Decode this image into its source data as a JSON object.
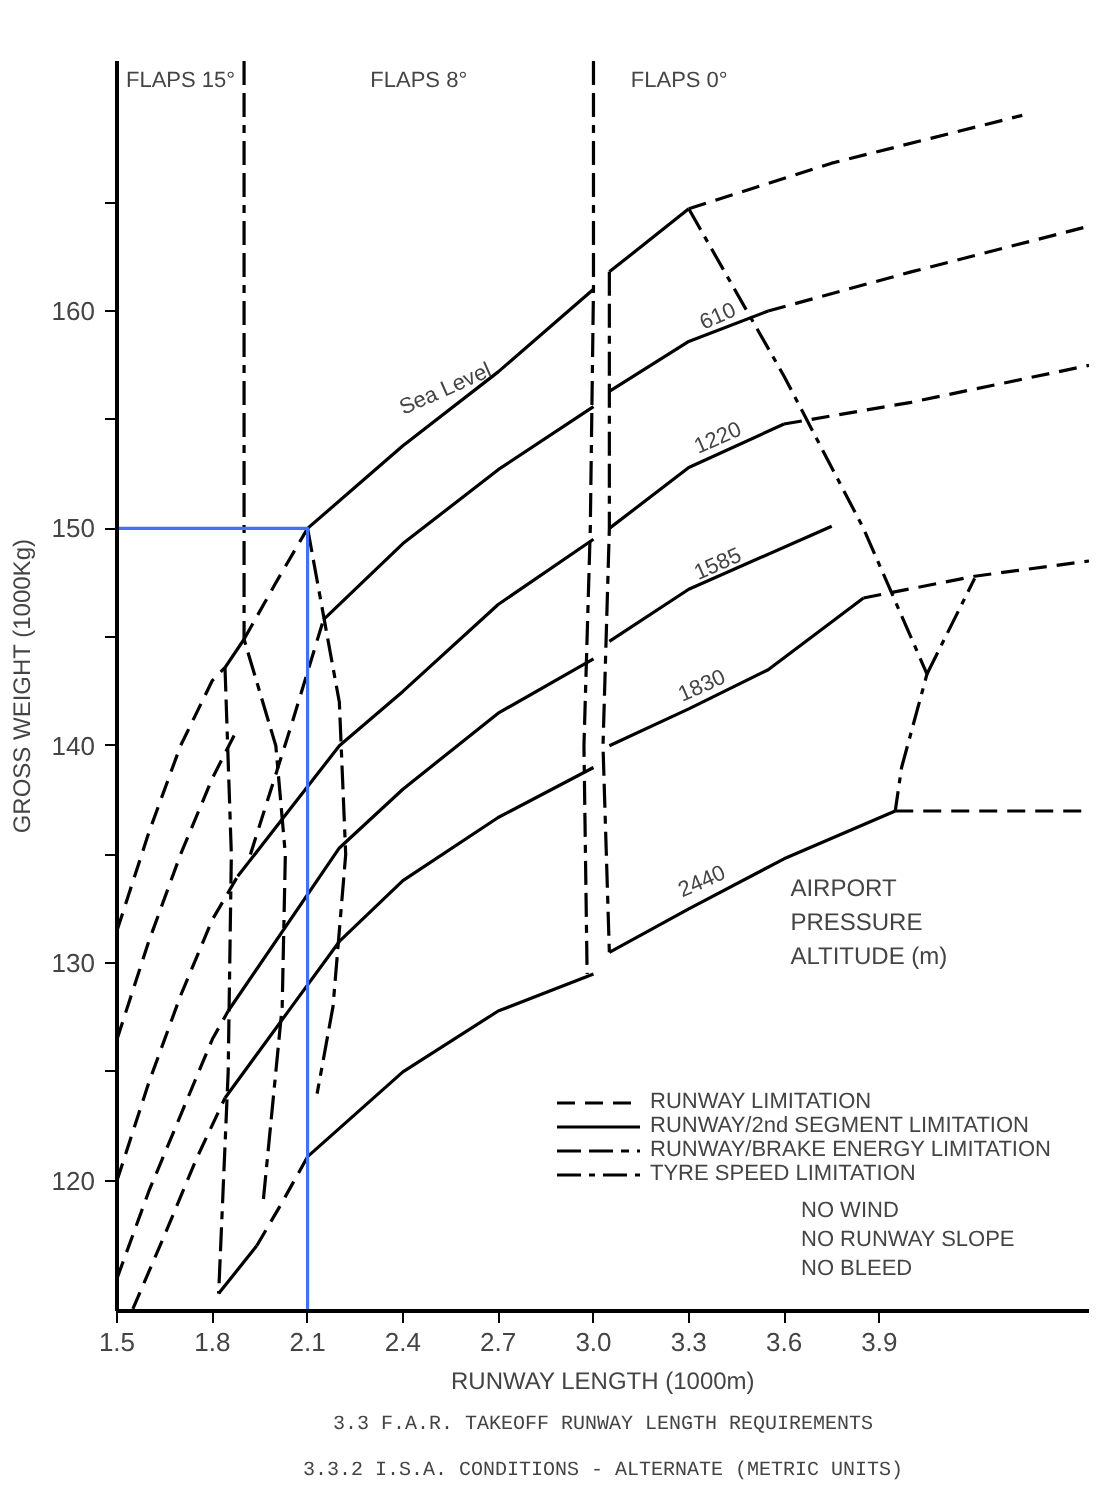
{
  "chart_data": {
    "type": "line",
    "xlabel": "RUNWAY LENGTH (1000m)",
    "ylabel": "GROSS WEIGHT (1000Kg)",
    "xlim": [
      1.5,
      4.56
    ],
    "ylim": [
      114,
      171.5
    ],
    "xticks": [
      1.5,
      1.8,
      2.1,
      2.4,
      2.7,
      {
        "value": 3,
        "label": "3.0"
      },
      3.3,
      3.6,
      3.9
    ],
    "yticks": [
      120,
      {
        "value": 125,
        "label": null
      },
      130,
      {
        "value": 135,
        "label": null
      },
      140,
      {
        "value": 145,
        "label": null
      },
      150,
      {
        "value": 155,
        "label": null
      },
      160,
      {
        "value": 165,
        "label": null
      }
    ],
    "grid": false,
    "legend": "bottom right",
    "marker": "none",
    "series": [
      {
        "name": "RUNWAY LIMITATION",
        "color": "#000000",
        "line_style": "dashed",
        "x": [
          1.5,
          1.6,
          1.7,
          1.8,
          1.84
        ],
        "values": [
          131.5,
          136,
          140,
          143,
          143.6
        ]
      },
      {
        "color": "#000000",
        "line_style": "dashed",
        "x": [
          1.5,
          1.6,
          1.7,
          1.8,
          1.88
        ],
        "values": [
          126.5,
          131,
          135,
          138.5,
          140.8
        ]
      },
      {
        "color": "#000000",
        "line_style": "dashed",
        "x": [
          1.5,
          1.6,
          1.7,
          1.8,
          1.88
        ],
        "values": [
          120,
          124.5,
          128.5,
          132,
          134
        ]
      },
      {
        "color": "#000000",
        "line_style": "dashed",
        "x": [
          1.5,
          1.6,
          1.7,
          1.8,
          1.85
        ],
        "values": [
          115.5,
          119.5,
          123,
          126.5,
          127.8
        ]
      },
      {
        "color": "#000000",
        "line_style": "dashed",
        "x": [
          1.55,
          1.65,
          1.75,
          1.84
        ],
        "values": [
          114.1,
          117.5,
          121,
          123.8
        ]
      },
      {
        "color": "#000000",
        "line_style": "dashed",
        "x": [
          1.9,
          2.0,
          2.1
        ],
        "values": [
          144.9,
          147.5,
          150
        ]
      },
      {
        "color": "#000000",
        "line_style": "dashed",
        "x": [
          1.92,
          2.05,
          2.15
        ],
        "values": [
          135,
          141,
          145.8
        ]
      },
      {
        "color": "#000000",
        "line_style": "dashed",
        "x": [
          1.94,
          2.02,
          2.1
        ],
        "values": [
          117,
          119,
          121.1
        ]
      },
      {
        "color": "#000000",
        "line_style": "dashed",
        "x": [
          3.3,
          3.75,
          4.35
        ],
        "values": [
          164.7,
          166.8,
          169
        ]
      },
      {
        "color": "#000000",
        "line_style": "dashed",
        "x": [
          3.55,
          4.0,
          4.56
        ],
        "values": [
          160,
          161.8,
          163.9
        ]
      },
      {
        "color": "#000000",
        "line_style": "dashed",
        "x": [
          3.6,
          4.0,
          4.56
        ],
        "values": [
          154.8,
          155.8,
          157.5
        ]
      },
      {
        "color": "#000000",
        "line_style": "dashed",
        "x": [
          3.85,
          4.2,
          4.56
        ],
        "values": [
          146.8,
          147.8,
          148.5
        ]
      },
      {
        "color": "#000000",
        "line_style": "dashed",
        "x": [
          3.95,
          4.56
        ],
        "values": [
          137,
          137
        ]
      },
      {
        "name": "RUNWAY/2nd SEGMENT LIMITATION",
        "color": "#000000",
        "line_style": "solid",
        "x": [
          2.1,
          2.4,
          2.7,
          3.0
        ],
        "values": [
          150,
          153.8,
          157.2,
          161
        ]
      },
      {
        "color": "#000000",
        "line_style": "solid",
        "x": [
          1.84,
          1.9
        ],
        "values": [
          143.6,
          144.9
        ]
      },
      {
        "color": "#000000",
        "line_style": "solid",
        "x": [
          3.05,
          3.3
        ],
        "values": [
          161.8,
          164.7
        ]
      },
      {
        "color": "#000000",
        "line_style": "solid",
        "x": [
          2.15,
          2.4,
          2.7,
          3.0
        ],
        "values": [
          145.8,
          149.3,
          152.7,
          155.6
        ]
      },
      {
        "color": "#000000",
        "line_style": "solid",
        "x": [
          3.05,
          3.3,
          3.55
        ],
        "values": [
          156.3,
          158.6,
          160
        ]
      },
      {
        "color": "#000000",
        "line_style": "solid",
        "x": [
          1.88,
          2.2,
          2.4,
          2.7,
          3.0
        ],
        "values": [
          134,
          140,
          142.5,
          146.5,
          149.5
        ]
      },
      {
        "color": "#000000",
        "line_style": "solid",
        "x": [
          3.05,
          3.3,
          3.6
        ],
        "values": [
          150,
          152.8,
          154.8
        ]
      },
      {
        "color": "#000000",
        "line_style": "solid",
        "x": [
          1.85,
          2.2,
          2.4,
          2.7,
          3.0
        ],
        "values": [
          127.8,
          135.3,
          138,
          141.5,
          144
        ]
      },
      {
        "color": "#000000",
        "line_style": "solid",
        "x": [
          3.05,
          3.3,
          3.75
        ],
        "values": [
          144.8,
          147.2,
          150.1
        ]
      },
      {
        "color": "#000000",
        "line_style": "solid",
        "x": [
          1.84,
          2.05,
          2.2,
          2.4,
          2.7,
          3.0
        ],
        "values": [
          123.8,
          128,
          131,
          133.8,
          136.7,
          139
        ]
      },
      {
        "color": "#000000",
        "line_style": "solid",
        "x": [
          3.05,
          3.3,
          3.55,
          3.85
        ],
        "values": [
          140,
          141.7,
          143.5,
          146.8
        ]
      },
      {
        "color": "#000000",
        "line_style": "solid",
        "x": [
          1.82,
          1.94
        ],
        "values": [
          114.8,
          117
        ]
      },
      {
        "color": "#000000",
        "line_style": "solid",
        "x": [
          2.1,
          2.4,
          2.7,
          3.0
        ],
        "values": [
          121.1,
          125,
          127.8,
          129.5
        ]
      },
      {
        "color": "#000000",
        "line_style": "solid",
        "x": [
          3.05,
          3.3,
          3.6,
          3.95
        ],
        "values": [
          130.5,
          132.5,
          134.8,
          137
        ]
      },
      {
        "name": "RUNWAY/BRAKE ENERGY LIMITATION",
        "color": "#000000",
        "line_style": "dashdot",
        "x": [
          1.84,
          1.86,
          1.85,
          1.82
        ],
        "values": [
          143.6,
          135,
          125,
          114.8
        ]
      },
      {
        "color": "#000000",
        "line_style": "dashdot",
        "x": [
          1.9,
          1.9,
          2.0,
          2.03,
          2.02,
          1.96
        ],
        "values": [
          171.5,
          144.9,
          140,
          135,
          128,
          119
        ]
      },
      {
        "color": "#000000",
        "line_style": "dashdot",
        "x": [
          2.1,
          2.2,
          2.22,
          2.18,
          2.13
        ],
        "values": [
          150,
          142,
          135,
          128,
          124
        ]
      },
      {
        "color": "#000000",
        "line_style": "dashdot",
        "x": [
          3.0,
          3.0,
          2.99,
          2.97,
          2.98
        ],
        "values": [
          171.5,
          161,
          150,
          140,
          129.5
        ]
      },
      {
        "color": "#000000",
        "line_style": "dashdot",
        "x": [
          3.05,
          3.05,
          3.03,
          3.05
        ],
        "values": [
          161.8,
          150,
          140,
          130.5
        ]
      },
      {
        "name": "TYRE SPEED LIMITATION",
        "color": "#000000",
        "line_style": "longdashdot",
        "x": [
          3.3,
          3.6,
          3.85,
          4.05,
          3.97,
          3.95
        ],
        "values": [
          164.7,
          157,
          150,
          143.3,
          139,
          137
        ]
      },
      {
        "color": "#000000",
        "line_style": "longdashdot",
        "x": [
          4.05,
          4.2
        ],
        "values": [
          143.3,
          147.7
        ]
      },
      {
        "color": "#4472ee",
        "line_style": "solid",
        "x": [
          1.5,
          2.1,
          2.1
        ],
        "values": [
          150,
          150,
          114
        ]
      }
    ],
    "annotations": [
      "FLAPS 15°",
      "FLAPS 8°",
      "FLAPS 0°",
      {
        "text": "Sea Level",
        "x": 2.55,
        "y": 155.6
      },
      {
        "text": "610",
        "x": 3.4,
        "y": 159.2
      },
      {
        "text": "1220",
        "x": 3.4,
        "y": 153.6
      },
      {
        "text": "1585",
        "x": 3.4,
        "y": 147.8
      },
      {
        "text": "1830",
        "x": 3.35,
        "y": 142.2
      },
      {
        "text": "2440",
        "x": 3.35,
        "y": 133.2
      },
      {
        "text": "AIRPORT\nPRESSURE\nALTITUDE (m)",
        "x": 3.62,
        "y": 135
      },
      "NO WIND\nNO RUNWAY SLOPE\nNO BLEED",
      "3.3 F.A.R. TAKEOFF RUNWAY LENGTH REQUIREMENTS\n3.3.2 I.S.A. CONDITIONS - ALTERNATE (METRIC UNITS)"
    ]
  }
}
